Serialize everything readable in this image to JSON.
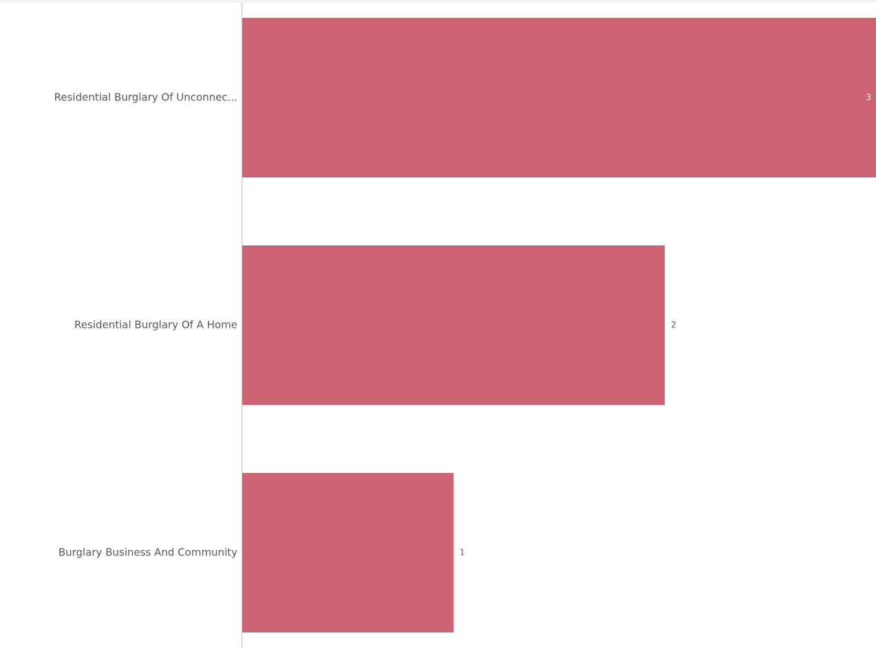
{
  "chart_data": {
    "type": "bar",
    "orientation": "horizontal",
    "categories": [
      "Residential Burglary Of Unconnec...",
      "Residential Burglary Of A Home",
      "Burglary Business And Community"
    ],
    "values": [
      3,
      2,
      1
    ],
    "xlim": [
      0,
      3
    ],
    "grid": false,
    "legend": "none",
    "colors": {
      "bar": "#cb6373",
      "axis_line": "#d9d9d9",
      "category_label": "#595959",
      "value_label": "#595959",
      "value_label_inside": "#ffffff"
    }
  }
}
